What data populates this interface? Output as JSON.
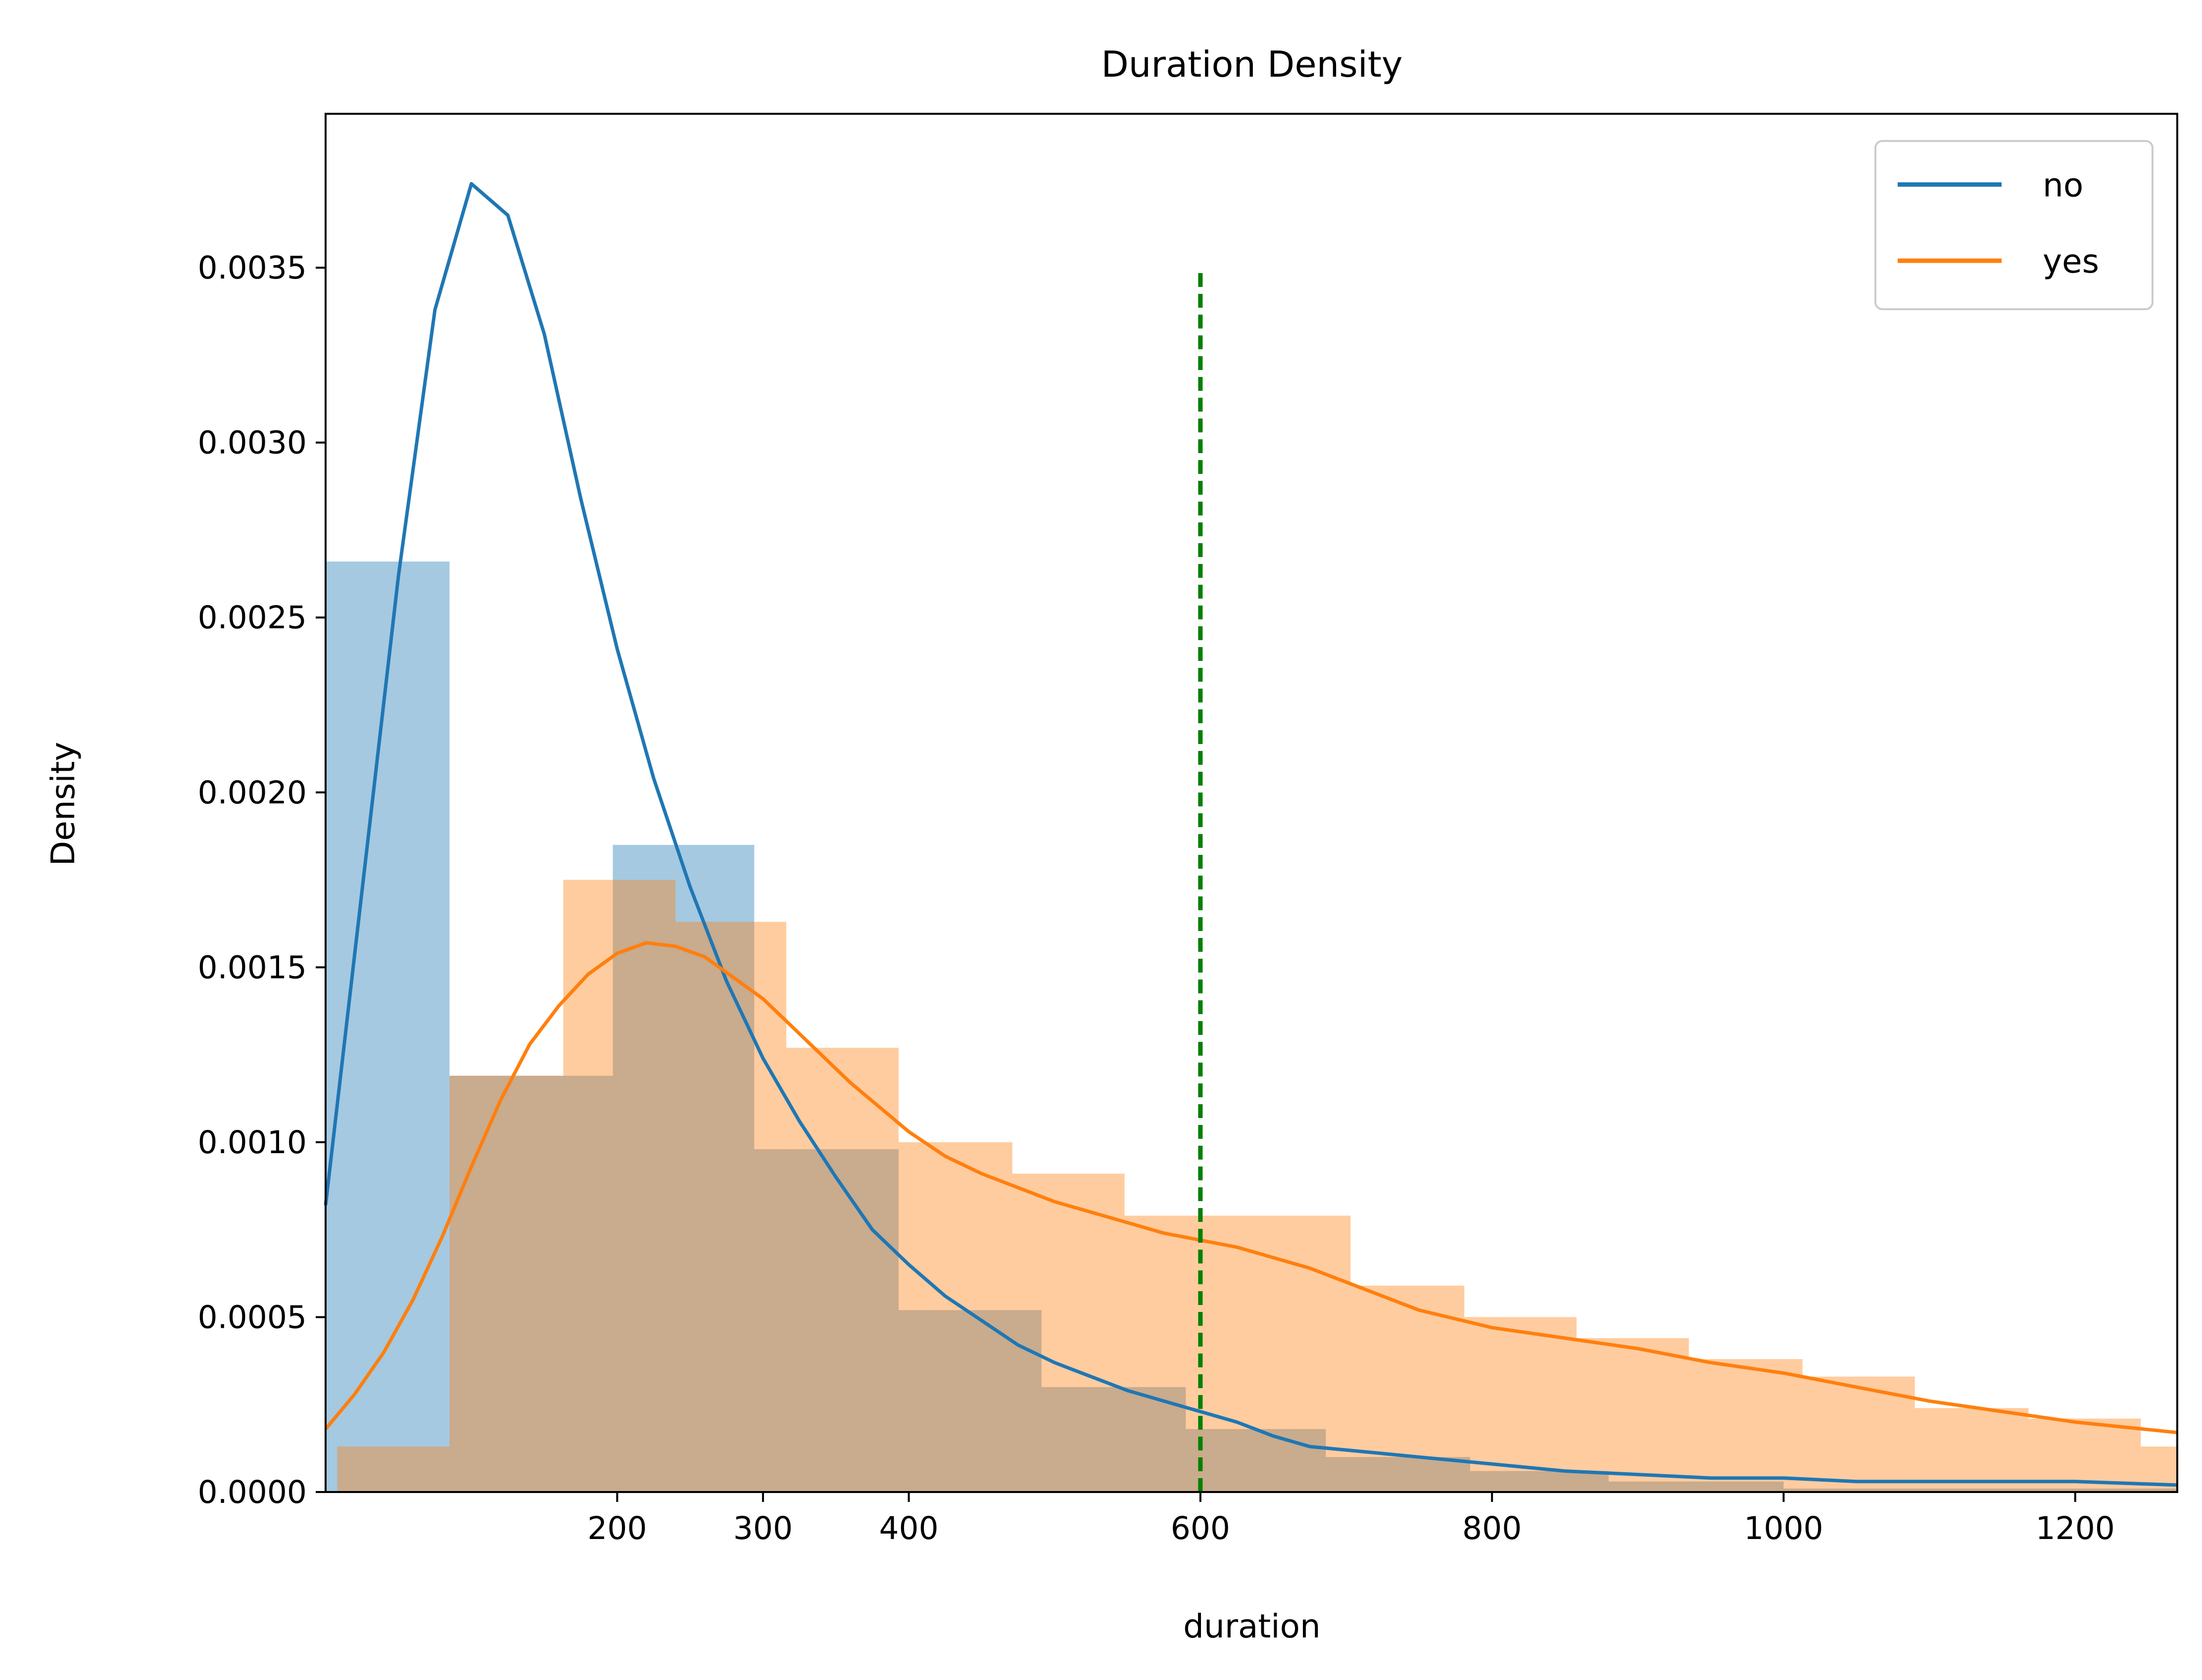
{
  "chart_data": {
    "type": "histogram_kde",
    "title": "Duration Density",
    "xlabel": "duration",
    "ylabel": "Density",
    "xlim": [
      0,
      1270
    ],
    "ylim": [
      0,
      0.00394
    ],
    "x_ticks": [
      200,
      300,
      400,
      600,
      800,
      1000,
      1200
    ],
    "y_ticks": [
      0.0,
      0.0005,
      0.001,
      0.0015,
      0.002,
      0.0025,
      0.003,
      0.0035
    ],
    "y_tick_labels": [
      "0.0000",
      "0.0005",
      "0.0010",
      "0.0015",
      "0.0020",
      "0.0025",
      "0.0030",
      "0.0035"
    ],
    "legend": {
      "position": "upper right",
      "entries": [
        {
          "label": "no",
          "color": "#1f77b4"
        },
        {
          "label": "yes",
          "color": "#ff7f0e"
        }
      ]
    },
    "reference_line": {
      "x": 600,
      "y_top": 0.00349,
      "color": "#008000",
      "style": "dashed"
    },
    "series": [
      {
        "name": "no",
        "color": "#1f77b4",
        "hist_alpha": 0.4,
        "hist_bins": [
          {
            "x0": 0,
            "x1": 85,
            "density": 0.00266
          },
          {
            "x0": 85,
            "x1": 197,
            "density": 0.00119
          },
          {
            "x0": 197,
            "x1": 294,
            "density": 0.00185
          },
          {
            "x0": 294,
            "x1": 393,
            "density": 0.00098
          },
          {
            "x0": 393,
            "x1": 491,
            "density": 0.00052
          },
          {
            "x0": 491,
            "x1": 590,
            "density": 0.0003
          },
          {
            "x0": 590,
            "x1": 686,
            "density": 0.00018
          },
          {
            "x0": 686,
            "x1": 785,
            "density": 0.0001
          },
          {
            "x0": 785,
            "x1": 880,
            "density": 6e-05
          },
          {
            "x0": 880,
            "x1": 1000,
            "density": 3e-05
          },
          {
            "x0": 1000,
            "x1": 1270,
            "density": 1e-05
          }
        ],
        "kde_x": [
          0,
          25,
          50,
          75,
          100,
          125,
          150,
          175,
          200,
          225,
          250,
          275,
          300,
          325,
          350,
          375,
          400,
          425,
          450,
          475,
          500,
          525,
          550,
          575,
          600,
          625,
          650,
          675,
          700,
          750,
          800,
          850,
          900,
          950,
          1000,
          1050,
          1100,
          1150,
          1200,
          1270
        ],
        "kde_y": [
          0.00082,
          0.00172,
          0.00262,
          0.00338,
          0.00374,
          0.00365,
          0.00331,
          0.00284,
          0.00241,
          0.00204,
          0.00173,
          0.00146,
          0.00124,
          0.00106,
          0.0009,
          0.00075,
          0.00065,
          0.00056,
          0.00049,
          0.00042,
          0.00037,
          0.00033,
          0.00029,
          0.00026,
          0.00023,
          0.0002,
          0.00016,
          0.00013,
          0.00012,
          0.0001,
          8e-05,
          6e-05,
          5e-05,
          4e-05,
          4e-05,
          3e-05,
          3e-05,
          3e-05,
          3e-05,
          2e-05
        ]
      },
      {
        "name": "yes",
        "color": "#ff7f0e",
        "hist_alpha": 0.4,
        "hist_bins": [
          {
            "x0": 8,
            "x1": 85,
            "density": 0.00013
          },
          {
            "x0": 85,
            "x1": 163,
            "density": 0.00119
          },
          {
            "x0": 163,
            "x1": 240,
            "density": 0.00175
          },
          {
            "x0": 240,
            "x1": 316,
            "density": 0.00163
          },
          {
            "x0": 316,
            "x1": 393,
            "density": 0.00127
          },
          {
            "x0": 393,
            "x1": 471,
            "density": 0.001
          },
          {
            "x0": 471,
            "x1": 548,
            "density": 0.00091
          },
          {
            "x0": 548,
            "x1": 703,
            "density": 0.00079
          },
          {
            "x0": 703,
            "x1": 781,
            "density": 0.00059
          },
          {
            "x0": 781,
            "x1": 858,
            "density": 0.0005
          },
          {
            "x0": 858,
            "x1": 935,
            "density": 0.00044
          },
          {
            "x0": 935,
            "x1": 1013,
            "density": 0.00038
          },
          {
            "x0": 1013,
            "x1": 1090,
            "density": 0.00033
          },
          {
            "x0": 1090,
            "x1": 1168,
            "density": 0.00024
          },
          {
            "x0": 1168,
            "x1": 1245,
            "density": 0.00021
          },
          {
            "x0": 1245,
            "x1": 1270,
            "density": 0.00013
          }
        ],
        "kde_x": [
          0,
          20,
          40,
          60,
          80,
          100,
          120,
          140,
          160,
          180,
          200,
          220,
          240,
          260,
          280,
          300,
          320,
          340,
          360,
          380,
          400,
          425,
          450,
          475,
          500,
          525,
          550,
          575,
          600,
          625,
          650,
          675,
          700,
          750,
          800,
          850,
          900,
          950,
          1000,
          1050,
          1100,
          1150,
          1200,
          1270
        ],
        "kde_y": [
          0.00018,
          0.00028,
          0.0004,
          0.00055,
          0.00073,
          0.00093,
          0.00112,
          0.00128,
          0.00139,
          0.00148,
          0.00154,
          0.00157,
          0.00156,
          0.00153,
          0.00147,
          0.00141,
          0.00133,
          0.00125,
          0.00117,
          0.0011,
          0.00103,
          0.00096,
          0.00091,
          0.00087,
          0.00083,
          0.0008,
          0.00077,
          0.00074,
          0.00072,
          0.0007,
          0.00067,
          0.00064,
          0.0006,
          0.00052,
          0.00047,
          0.00044,
          0.00041,
          0.00037,
          0.00034,
          0.0003,
          0.00026,
          0.00023,
          0.0002,
          0.00017
        ]
      }
    ]
  }
}
